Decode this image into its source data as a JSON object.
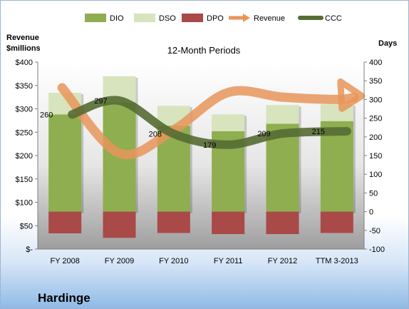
{
  "company": "Hardinge",
  "chart_data": {
    "type": "bar",
    "title": "12-Month Periods",
    "left_axis_title": [
      "Revenue",
      "$millions"
    ],
    "right_axis_title": "Days",
    "categories": [
      "FY 2008",
      "FY 2009",
      "FY 2010",
      "FY 2011",
      "FY 2012",
      "TTM 3-2013"
    ],
    "left_axis": {
      "min": 0,
      "max": 400,
      "step": 50,
      "tick_labels": [
        "$-",
        "$50",
        "$100",
        "$150",
        "$200",
        "$250",
        "$300",
        "$350",
        "$400"
      ]
    },
    "right_axis": {
      "min": -100,
      "max": 400,
      "step": 50,
      "tick_labels": [
        "-100",
        "-50",
        "0",
        "50",
        "100",
        "150",
        "200",
        "250",
        "300",
        "350",
        "400"
      ]
    },
    "series": [
      {
        "name": "DIO",
        "type": "stacked-bar",
        "axis": "right",
        "color": "#8fae4f",
        "values": [
          260,
          292,
          230,
          215,
          235,
          242
        ]
      },
      {
        "name": "DSO",
        "type": "stacked-bar",
        "axis": "right",
        "color": "#d7e4bd",
        "values": [
          58,
          70,
          53,
          45,
          50,
          45
        ]
      },
      {
        "name": "DPO",
        "type": "bar-negative",
        "axis": "right",
        "color": "#a94948",
        "values": [
          -58,
          -70,
          -57,
          -60,
          -60,
          -57
        ]
      },
      {
        "name": "Revenue",
        "type": "line-arrow",
        "axis": "left",
        "color": "#e8955a",
        "values": [
          345,
          205,
          255,
          335,
          325,
          320
        ]
      },
      {
        "name": "CCC",
        "type": "line",
        "axis": "right",
        "color": "#556b34",
        "values": [
          260,
          297,
          208,
          179,
          209,
          215
        ],
        "labels": [
          "260",
          "297",
          "208",
          "179",
          "209",
          "215"
        ]
      }
    ],
    "legend": {
      "placement": "top"
    },
    "grid": false
  }
}
